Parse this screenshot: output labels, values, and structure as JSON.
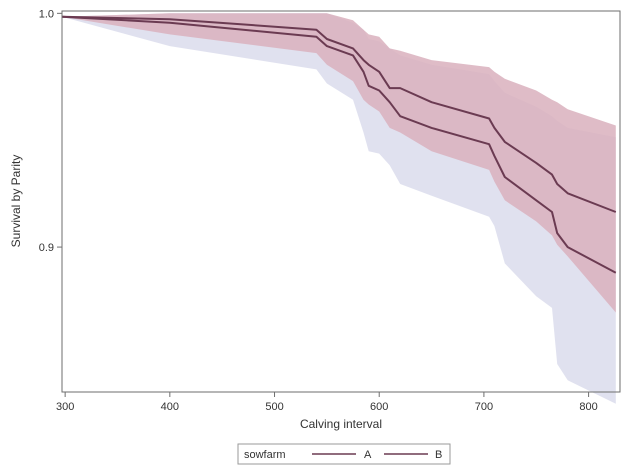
{
  "chart_data": {
    "type": "line",
    "xlabel": "Calving interval",
    "ylabel": "Survival by Parity",
    "xlim": [
      297,
      830
    ],
    "ylim": [
      0.838,
      1.001
    ],
    "xticks": [
      "300",
      "400",
      "500",
      "600",
      "700",
      "800"
    ],
    "yticks": [
      "0.9",
      "1.0"
    ],
    "grid": false,
    "legend_placement": "bottom-center",
    "legend": {
      "title": "sowfarm",
      "entries": [
        "A",
        "B"
      ]
    },
    "series": [
      {
        "name": "A",
        "color": "#6b3b52",
        "band_color": "#d9b0bd",
        "x": [
          297,
          400,
          540,
          550,
          575,
          585,
          590,
          600,
          610,
          620,
          650,
          705,
          710,
          720,
          750,
          765,
          770,
          780,
          826
        ],
        "y": [
          0.9985,
          0.9975,
          0.993,
          0.989,
          0.985,
          0.98,
          0.978,
          0.975,
          0.968,
          0.968,
          0.962,
          0.955,
          0.951,
          0.945,
          0.936,
          0.931,
          0.927,
          0.923,
          0.915
        ],
        "lower": [
          0.9985,
          0.991,
          0.983,
          0.978,
          0.971,
          0.963,
          0.961,
          0.958,
          0.951,
          0.949,
          0.941,
          0.933,
          0.928,
          0.92,
          0.911,
          0.905,
          0.901,
          0.896,
          0.872
        ],
        "upper": [
          0.9985,
          1.0,
          1.0,
          1.0,
          0.997,
          0.993,
          0.991,
          0.99,
          0.985,
          0.984,
          0.98,
          0.977,
          0.975,
          0.972,
          0.967,
          0.963,
          0.962,
          0.959,
          0.952
        ]
      },
      {
        "name": "B",
        "color": "#6b3b52",
        "band_color": "#dadcec",
        "x": [
          297,
          400,
          540,
          550,
          575,
          585,
          590,
          600,
          610,
          620,
          650,
          705,
          710,
          720,
          750,
          765,
          770,
          780,
          826
        ],
        "y": [
          0.9985,
          0.996,
          0.99,
          0.986,
          0.982,
          0.975,
          0.969,
          0.967,
          0.962,
          0.956,
          0.951,
          0.944,
          0.939,
          0.93,
          0.92,
          0.915,
          0.906,
          0.9,
          0.889
        ],
        "lower": [
          0.9985,
          0.986,
          0.976,
          0.97,
          0.963,
          0.949,
          0.941,
          0.94,
          0.935,
          0.927,
          0.922,
          0.913,
          0.909,
          0.893,
          0.879,
          0.874,
          0.85,
          0.843,
          0.833
        ],
        "upper": [
          0.9985,
          1.0,
          1.0,
          1.0,
          0.996,
          0.993,
          0.989,
          0.988,
          0.985,
          0.982,
          0.978,
          0.974,
          0.971,
          0.966,
          0.96,
          0.956,
          0.954,
          0.951,
          0.947
        ]
      }
    ]
  }
}
